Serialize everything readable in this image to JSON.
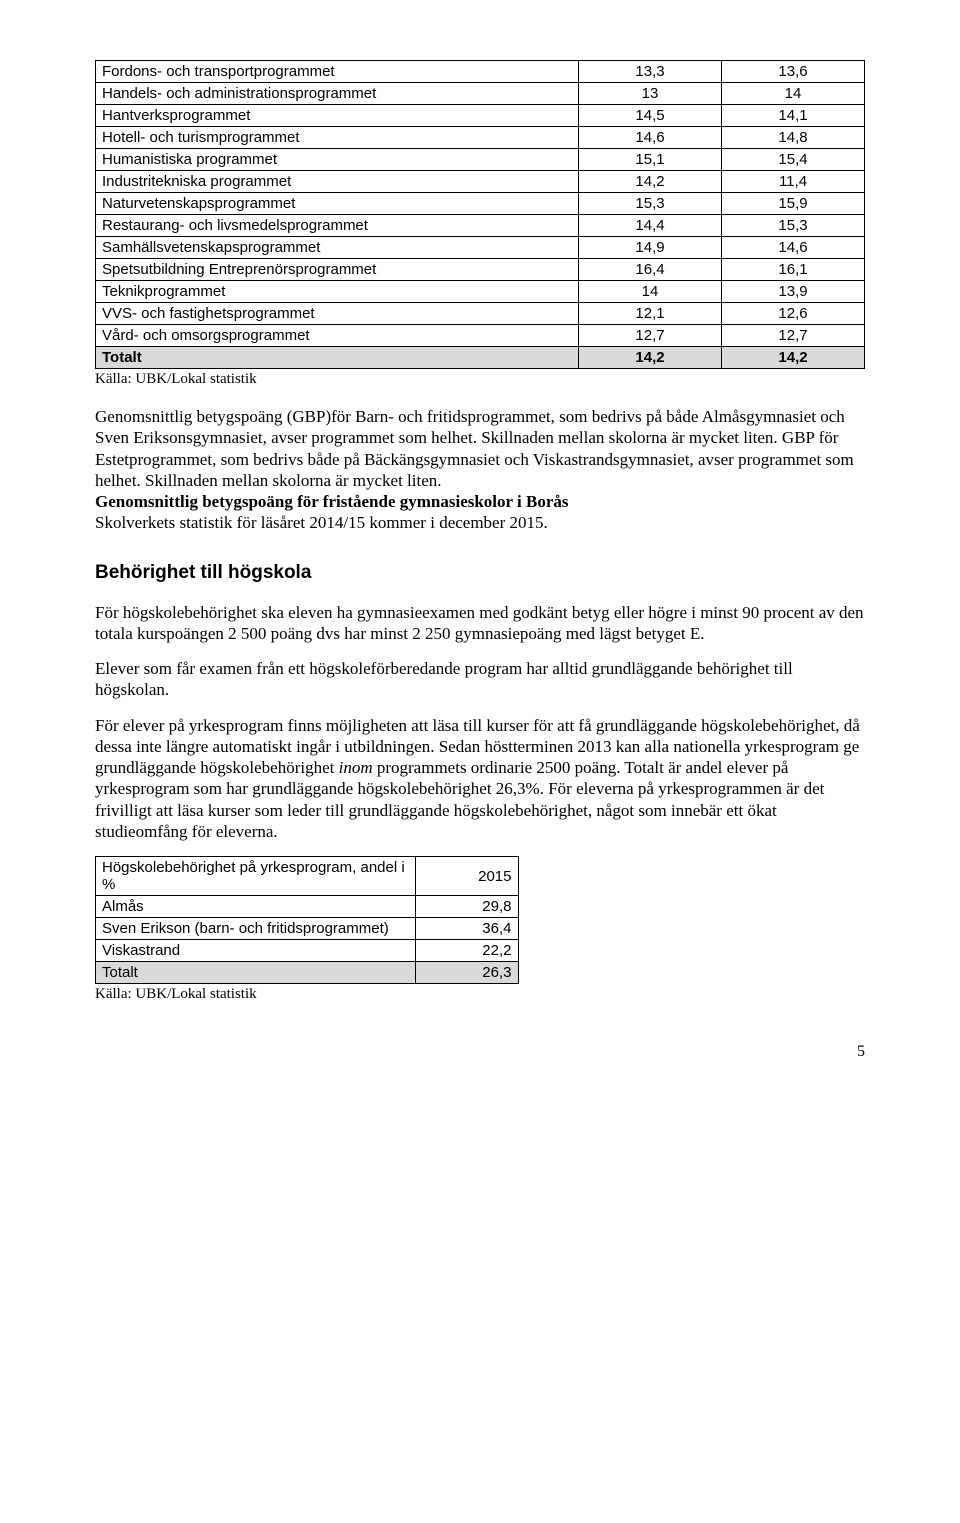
{
  "table1": {
    "rows": [
      {
        "label": "Fordons- och transportprogrammet",
        "c1": "13,3",
        "c2": "13,6"
      },
      {
        "label": "Handels- och administrationsprogrammet",
        "c1": "13",
        "c2": "14"
      },
      {
        "label": "Hantverksprogrammet",
        "c1": "14,5",
        "c2": "14,1"
      },
      {
        "label": "Hotell- och turismprogrammet",
        "c1": "14,6",
        "c2": "14,8"
      },
      {
        "label": "Humanistiska programmet",
        "c1": "15,1",
        "c2": "15,4"
      },
      {
        "label": "Industritekniska programmet",
        "c1": "14,2",
        "c2": "11,4"
      },
      {
        "label": "Naturvetenskapsprogrammet",
        "c1": "15,3",
        "c2": "15,9"
      },
      {
        "label": "Restaurang- och livsmedelsprogrammet",
        "c1": "14,4",
        "c2": "15,3"
      },
      {
        "label": "Samhällsvetenskapsprogrammet",
        "c1": "14,9",
        "c2": "14,6"
      },
      {
        "label": "Spetsutbildning Entreprenörsprogrammet",
        "c1": "16,4",
        "c2": "16,1"
      },
      {
        "label": "Teknikprogrammet",
        "c1": "14",
        "c2": "13,9"
      },
      {
        "label": "VVS- och fastighetsprogrammet",
        "c1": "12,1",
        "c2": "12,6"
      },
      {
        "label": "Vård- och omsorgsprogrammet",
        "c1": "12,7",
        "c2": "12,7"
      }
    ],
    "total": {
      "label": "Totalt",
      "c1": "14,2",
      "c2": "14,2"
    }
  },
  "source": "Källa: UBK/Lokal statistik",
  "para1": {
    "t1": "Genomsnittlig betygspoäng (GBP)för Barn- och fritidsprogrammet, som bedrivs på både Almåsgymnasiet och Sven Eriksonsgymnasiet, avser programmet som helhet. Skillnaden mellan skolorna är mycket liten. GBP för Estetprogrammet, som bedrivs både på Bäckängsgymnasiet och Viskastrandsgymnasiet, avser programmet som helhet. Skillnaden mellan skolorna är mycket liten.",
    "t2": "Genomsnittlig betygspoäng för fristående gymnasieskolor i Borås",
    "t3": "Skolverkets statistik för läsåret 2014/15 kommer i december 2015."
  },
  "h2": "Behörighet till högskola",
  "para2": "För högskolebehörighet ska eleven ha gymnasieexamen med godkänt betyg eller högre i minst 90 procent av den totala kurspoängen 2 500 poäng dvs har minst 2 250 gymnasiepoäng med lägst betyget E.",
  "para3": "Elever som får examen från ett högskoleförberedande program har alltid grundläggande behörighet till högskolan.",
  "para4": {
    "t1": "För elever på yrkesprogram finns möjligheten att läsa till kurser för att få grundläggande högskolebehörighet, då dessa inte längre automatiskt ingår i utbildningen. Sedan höstterminen 2013 kan alla nationella yrkesprogram ge grundläggande högskolebehörighet ",
    "italic": "inom",
    "t2": " programmets ordinarie 2500 poäng. Totalt är andel elever på yrkesprogram som har grundläggande högskolebehörighet 26,3%. För eleverna på yrkesprogrammen är det frivilligt att läsa kurser som leder till grundläggande högskolebehörighet, något som innebär ett ökat studieomfång för eleverna."
  },
  "table2": {
    "header": {
      "label": "Högskolebehörighet på yrkesprogram, andel i %",
      "year": "2015"
    },
    "rows": [
      {
        "label": "Almås",
        "val": "29,8"
      },
      {
        "label": "Sven Erikson (barn- och fritidsprogrammet)",
        "val": "36,4"
      },
      {
        "label": "Viskastrand",
        "val": "22,2"
      }
    ],
    "total": {
      "label": "Totalt",
      "val": "26,3"
    }
  },
  "pagenum": "5"
}
